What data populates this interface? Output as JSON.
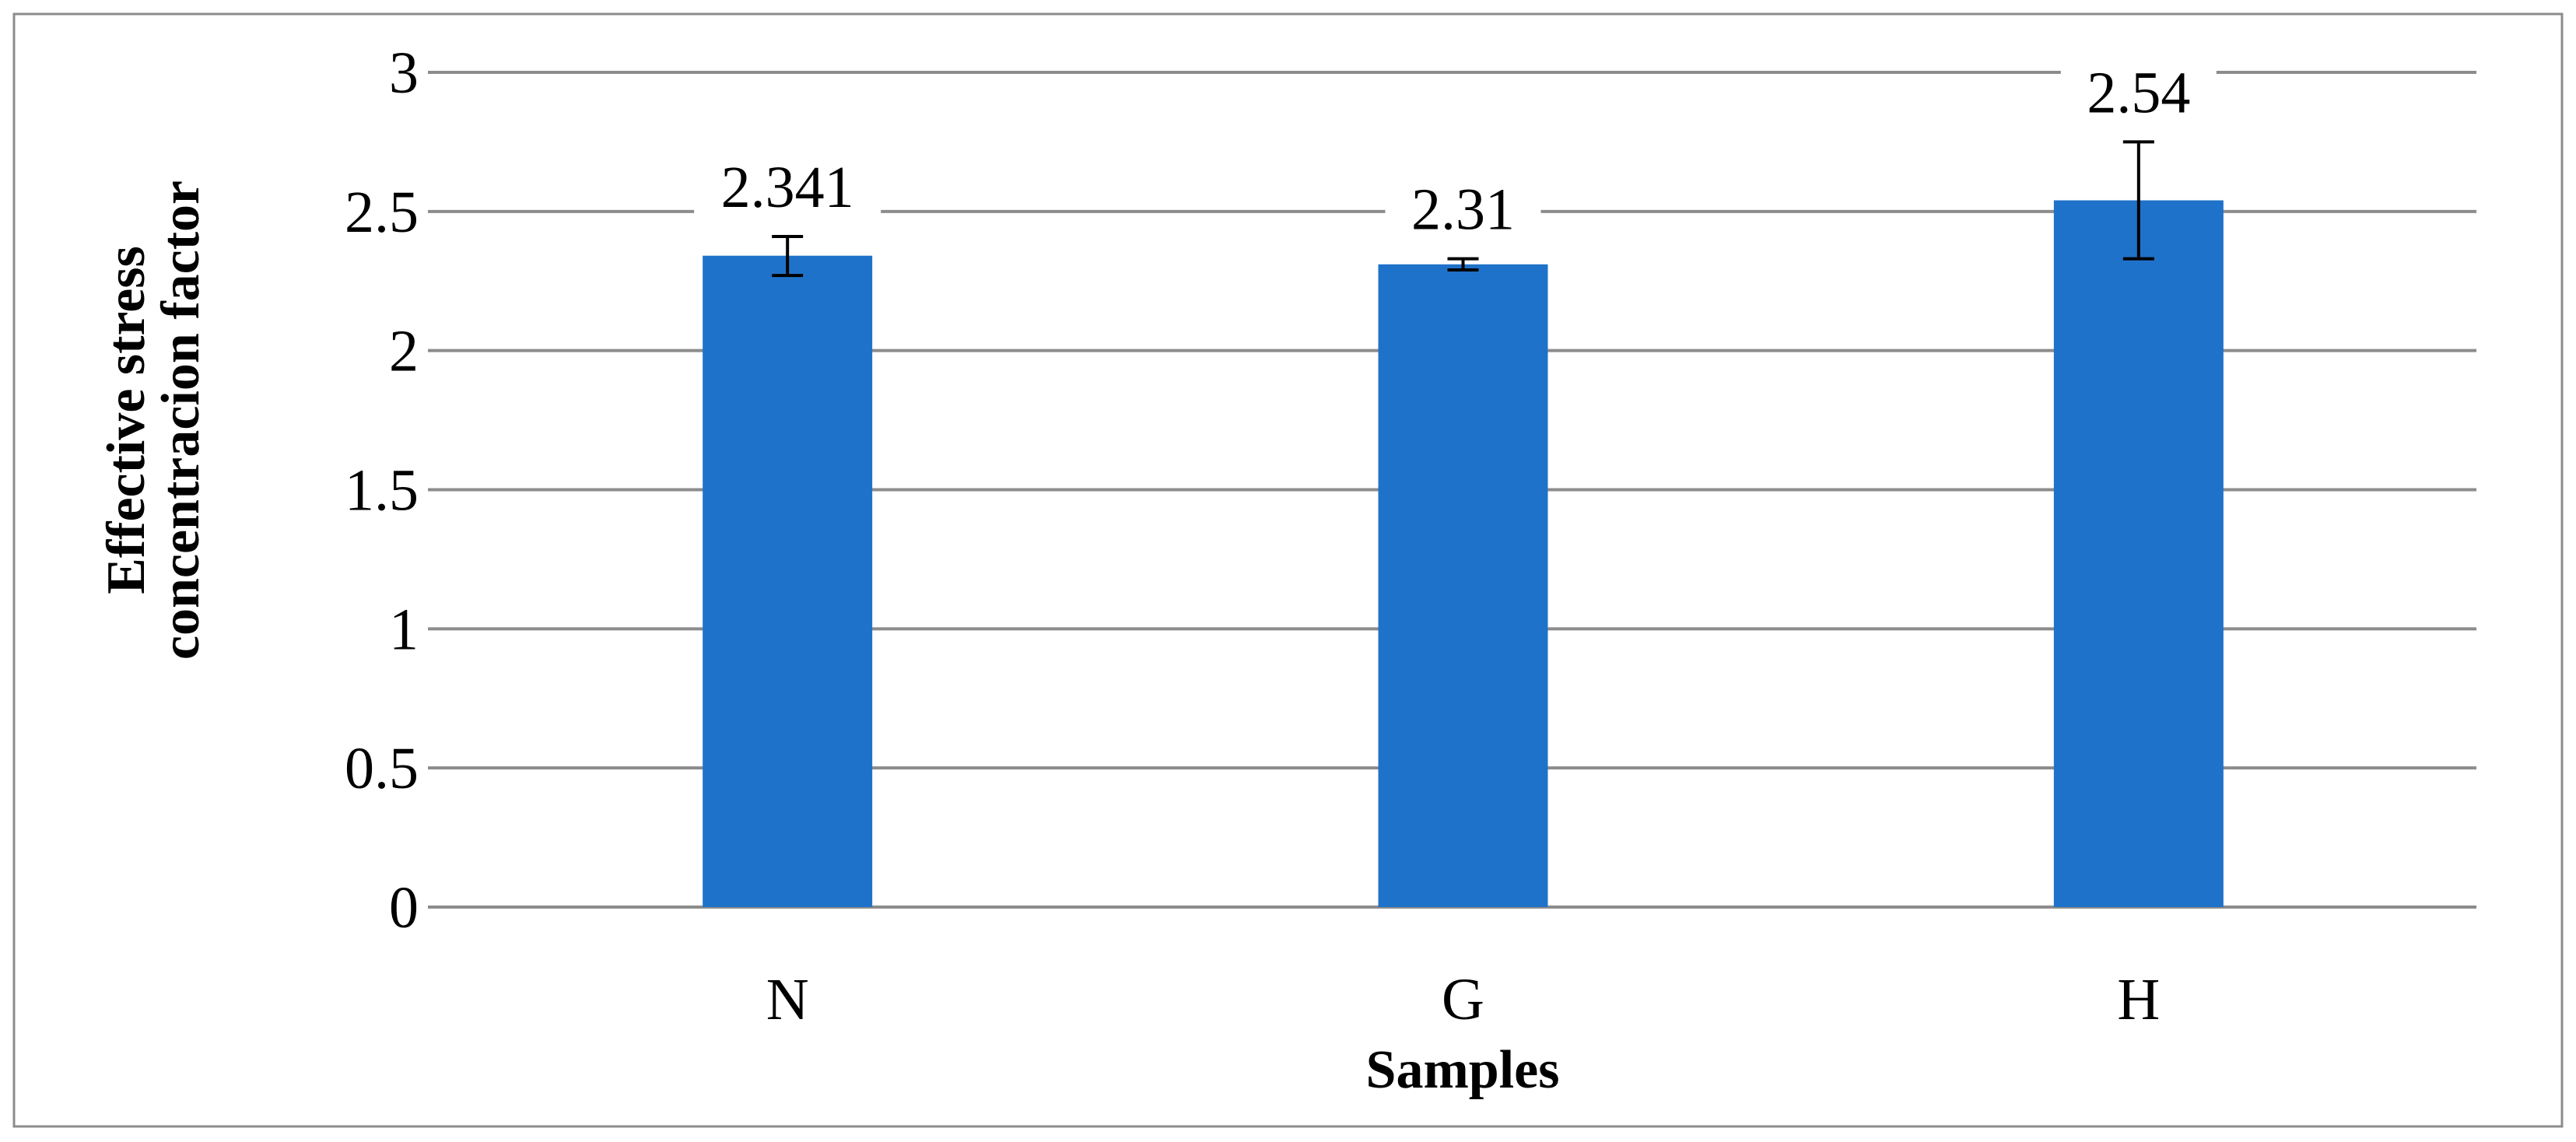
{
  "chart_data": {
    "type": "bar",
    "categories": [
      "N",
      "G",
      "H"
    ],
    "values": [
      2.341,
      2.31,
      2.54
    ],
    "value_labels": [
      "2.341",
      "2.31",
      "2.54"
    ],
    "error_bars": [
      {
        "low": 2.27,
        "high": 2.41
      },
      {
        "low": 2.29,
        "high": 2.33
      },
      {
        "low": 2.33,
        "high": 2.75
      }
    ],
    "xlabel": "Samples",
    "ylabel_lines": [
      "Effective stress",
      "concentracion factor"
    ],
    "ylim": [
      0,
      3
    ],
    "yticks": [
      0,
      0.5,
      1,
      1.5,
      2,
      2.5,
      3
    ],
    "ytick_labels": [
      "0",
      "0.5",
      "1",
      "1.5",
      "2",
      "2.5",
      "3"
    ],
    "grid": true,
    "bar_color": "#1f72c9",
    "grid_color": "#8c8c8c"
  }
}
